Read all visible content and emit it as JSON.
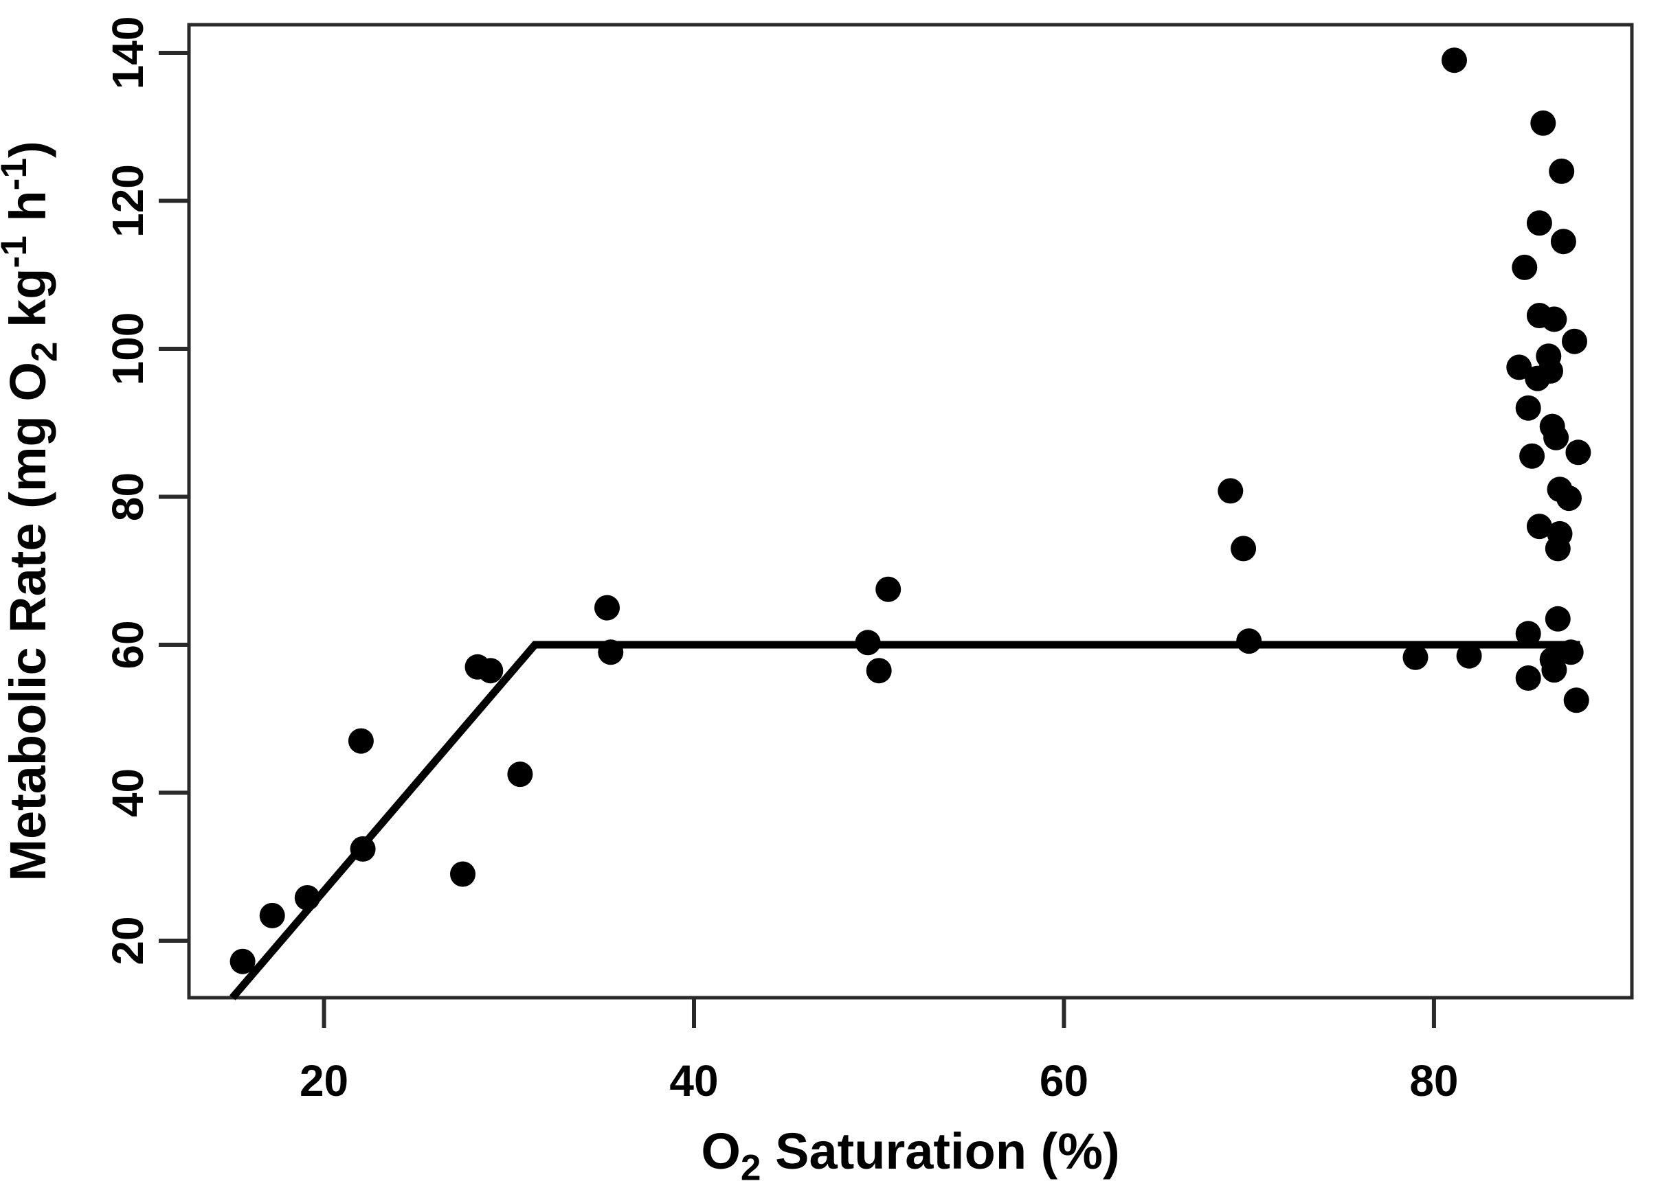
{
  "chart_data": {
    "type": "scatter",
    "title": "",
    "xlabel": "O2 Saturation (%)",
    "ylabel": "Metabolic Rate (mg O2 kg-1 h-1)",
    "xlabel_parts": [
      {
        "t": "O"
      },
      {
        "t": "2",
        "style": "sub"
      },
      {
        "t": " Saturation (%)"
      }
    ],
    "ylabel_parts": [
      {
        "t": "Metabolic Rate (mg O"
      },
      {
        "t": "2",
        "style": "sub"
      },
      {
        "t": " kg"
      },
      {
        "t": "-1",
        "style": "sup"
      },
      {
        "t": " h"
      },
      {
        "t": "-1",
        "style": "sup"
      },
      {
        "t": ")"
      }
    ],
    "xlim": [
      12.7,
      90.7
    ],
    "ylim": [
      12.3,
      143.8
    ],
    "x_ticks": [
      20,
      40,
      60,
      80
    ],
    "y_ticks": [
      20,
      40,
      60,
      80,
      100,
      120,
      140
    ],
    "grid": false,
    "legend": null,
    "marker": "filled-circle",
    "colors": {
      "points": "#000000",
      "fit_line": "#000000",
      "axis": "#2a2a2a",
      "background": "#ffffff",
      "text": "#000000"
    },
    "fit_line": {
      "type": "broken-stick",
      "breakpoint_x": 31.4,
      "plateau_y": 60,
      "vertices": [
        [
          15.05,
          12.3
        ],
        [
          31.4,
          60.0
        ],
        [
          87.9,
          60.0
        ]
      ]
    },
    "points": [
      [
        15.6,
        17.2
      ],
      [
        17.2,
        23.4
      ],
      [
        19.1,
        25.8
      ],
      [
        22.0,
        47.0
      ],
      [
        22.1,
        32.4
      ],
      [
        27.5,
        29.0
      ],
      [
        28.3,
        57.0
      ],
      [
        29.0,
        56.5
      ],
      [
        30.6,
        42.5
      ],
      [
        35.3,
        65.0
      ],
      [
        35.5,
        59.0
      ],
      [
        49.4,
        60.3
      ],
      [
        50.0,
        56.5
      ],
      [
        50.5,
        67.5
      ],
      [
        69.0,
        80.8
      ],
      [
        69.7,
        73.0
      ],
      [
        70.0,
        60.5
      ],
      [
        79.0,
        58.3
      ],
      [
        81.1,
        139.0
      ],
      [
        81.9,
        58.5
      ],
      [
        84.6,
        97.5
      ],
      [
        84.9,
        111.0
      ],
      [
        85.1,
        92.0
      ],
      [
        85.1,
        61.5
      ],
      [
        85.1,
        55.5
      ],
      [
        85.3,
        85.5
      ],
      [
        85.6,
        96.0
      ],
      [
        85.7,
        117.0
      ],
      [
        85.7,
        104.5
      ],
      [
        85.7,
        76.0
      ],
      [
        85.9,
        130.5
      ],
      [
        86.2,
        99.0
      ],
      [
        86.3,
        97.0
      ],
      [
        86.4,
        89.5
      ],
      [
        86.4,
        58.0
      ],
      [
        86.5,
        104.0
      ],
      [
        86.5,
        56.6
      ],
      [
        86.6,
        88.0
      ],
      [
        86.7,
        73.0
      ],
      [
        86.7,
        63.5
      ],
      [
        86.8,
        81.0
      ],
      [
        86.8,
        75.0
      ],
      [
        86.9,
        124.0
      ],
      [
        87.0,
        114.5
      ],
      [
        87.3,
        79.8
      ],
      [
        87.4,
        59.0
      ],
      [
        87.6,
        101.0
      ],
      [
        87.7,
        52.5
      ],
      [
        87.8,
        86.0
      ]
    ]
  }
}
